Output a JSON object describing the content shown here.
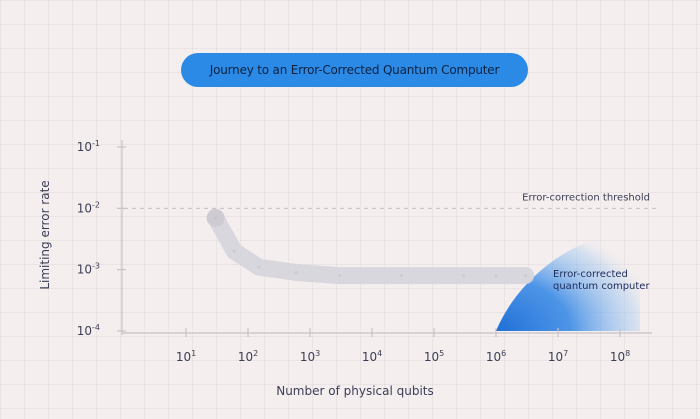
{
  "chart_data": {
    "type": "line",
    "title": "Journey to an Error-Corrected Quantum Computer",
    "xlabel": "Number of physical qubits",
    "ylabel": "Limiting error rate",
    "x_scale": "log",
    "y_scale": "log",
    "xlim": [
      1,
      100000000
    ],
    "ylim": [
      0.0001,
      0.1
    ],
    "x_ticks": [
      {
        "value": 10,
        "base": "10",
        "exp": "1"
      },
      {
        "value": 100,
        "base": "10",
        "exp": "2"
      },
      {
        "value": 1000,
        "base": "10",
        "exp": "3"
      },
      {
        "value": 10000,
        "base": "10",
        "exp": "4"
      },
      {
        "value": 100000,
        "base": "10",
        "exp": "5"
      },
      {
        "value": 1000000,
        "base": "10",
        "exp": "6"
      },
      {
        "value": 10000000,
        "base": "10",
        "exp": "7"
      },
      {
        "value": 100000000,
        "base": "10",
        "exp": "8"
      }
    ],
    "y_ticks": [
      {
        "value": 0.1,
        "base": "10",
        "exp": "-1"
      },
      {
        "value": 0.01,
        "base": "10",
        "exp": "-2"
      },
      {
        "value": 0.001,
        "base": "10",
        "exp": "-3"
      },
      {
        "value": 0.0001,
        "base": "10",
        "exp": "-4"
      }
    ],
    "threshold": {
      "label": "Error-correction threshold",
      "value": 0.01
    },
    "series": [
      {
        "x": [
          30,
          60,
          150,
          600,
          3000,
          30000,
          300000,
          1000000,
          3000000
        ],
        "y": [
          0.007,
          0.002,
          0.0011,
          0.0009,
          0.0008,
          0.0008,
          0.0008,
          0.0008,
          0.0008
        ]
      }
    ],
    "region": {
      "label_lines": [
        "Error-corrected",
        "quantum computer"
      ],
      "color": "#1f6fd6",
      "x_start": 1000000,
      "x_end": 100000000,
      "y_top": 0.003
    },
    "grid": true,
    "legend": "none"
  },
  "colors": {
    "background": "#f4eeee",
    "title_pill": "#2a8ae6",
    "axis": "#c8c2c6",
    "text": "#3b3e55",
    "series": "#d6d4dc",
    "region": "#1f6fd6"
  }
}
